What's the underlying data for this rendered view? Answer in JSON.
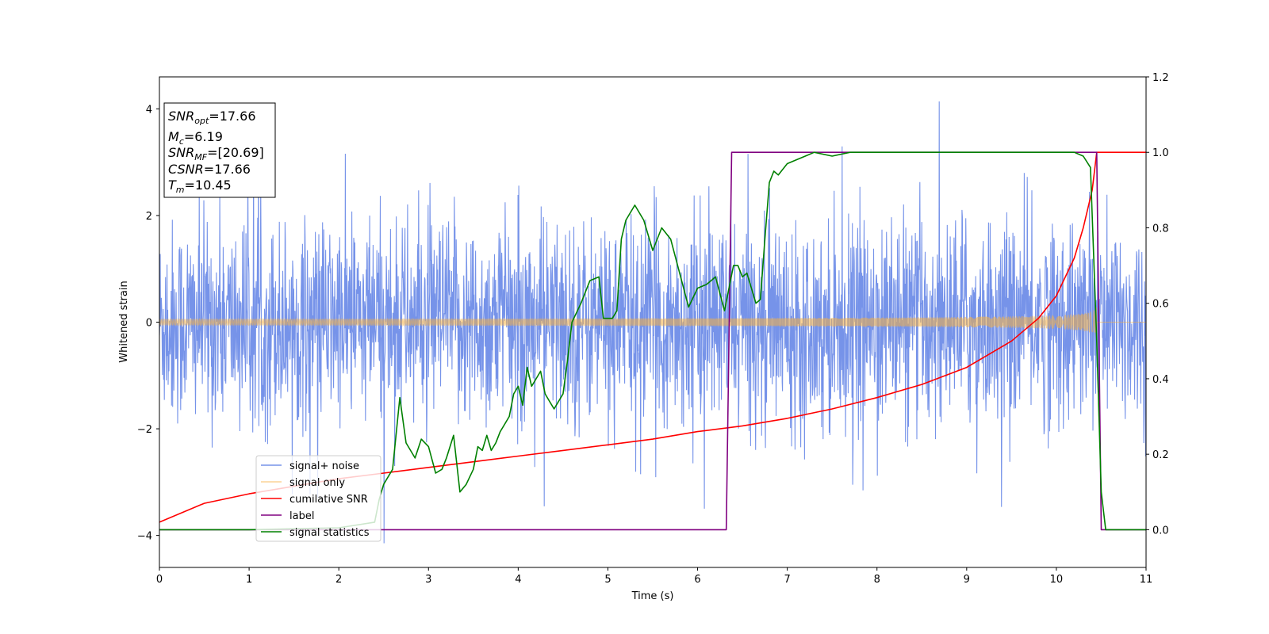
{
  "chart_data": {
    "type": "line",
    "xlabel": "Time (s)",
    "ylabel": "Whitened strain",
    "xlim": [
      0,
      11
    ],
    "ylim_left": [
      -4.6,
      4.6
    ],
    "ylim_right": [
      -0.1,
      1.2
    ],
    "x_ticks": [
      0,
      1,
      2,
      3,
      4,
      5,
      6,
      7,
      8,
      9,
      10,
      11
    ],
    "x_tick_labels": [
      "0",
      "1",
      "2",
      "3",
      "4",
      "5",
      "6",
      "7",
      "8",
      "9",
      "10",
      "11"
    ],
    "y_left_ticks": [
      -4,
      -2,
      0,
      2,
      4
    ],
    "y_left_tick_labels": [
      "−4",
      "−2",
      "0",
      "2",
      "4"
    ],
    "y_right_ticks": [
      0.0,
      0.2,
      0.4,
      0.6,
      0.8,
      1.0,
      1.2
    ],
    "y_right_tick_labels": [
      "0.0",
      "0.2",
      "0.4",
      "0.6",
      "0.8",
      "1.0",
      "1.2"
    ],
    "grid": false,
    "legend_placement": "lower-left",
    "info_box": {
      "placement": "top-left",
      "lines": [
        {
          "sym": "SNR",
          "sub": "opt",
          "rest": "=17.66"
        },
        {
          "sym": "M",
          "sub": "c",
          "rest": "=6.19"
        },
        {
          "sym": "SNR",
          "sub": "MF",
          "rest": "=[20.69]"
        },
        {
          "sym": "CSNR",
          "sub": "",
          "rest": "=17.66"
        },
        {
          "sym": "T",
          "sub": "m",
          "rest": "=10.45"
        }
      ]
    },
    "series": [
      {
        "name": "signal+ noise",
        "color": "#4169e1",
        "axis": "left",
        "style": "noise",
        "noise_sigma": 1.0,
        "x_range": [
          0,
          11
        ]
      },
      {
        "name": "signal only",
        "color": "#f5b041",
        "axis": "left",
        "style": "chirp",
        "merger_time": 10.45,
        "amplitude_start": 0.06,
        "amplitude_peak": 1.05
      },
      {
        "name": "cumilative SNR",
        "color": "#ff0000",
        "axis": "right",
        "x": [
          0,
          0.5,
          1,
          1.5,
          2,
          2.5,
          3,
          3.5,
          4,
          4.5,
          5,
          5.5,
          6,
          6.5,
          7,
          7.5,
          8,
          8.5,
          9,
          9.5,
          9.8,
          10,
          10.2,
          10.3,
          10.4,
          10.45,
          11
        ],
        "y": [
          0.02,
          0.07,
          0.095,
          0.115,
          0.135,
          0.15,
          0.165,
          0.18,
          0.195,
          0.21,
          0.225,
          0.24,
          0.26,
          0.275,
          0.295,
          0.32,
          0.35,
          0.385,
          0.43,
          0.5,
          0.56,
          0.62,
          0.72,
          0.8,
          0.9,
          1.0,
          1.0
        ]
      },
      {
        "name": "label",
        "color": "#800080",
        "axis": "right",
        "x": [
          0,
          6.32,
          6.38,
          10.45,
          10.5,
          11
        ],
        "y": [
          0,
          0,
          1,
          1,
          0,
          0
        ]
      },
      {
        "name": "signal statistics",
        "color": "#008000",
        "axis": "right",
        "x": [
          0,
          1.0,
          2.0,
          2.4,
          2.45,
          2.5,
          2.6,
          2.68,
          2.75,
          2.85,
          2.92,
          3.0,
          3.08,
          3.15,
          3.2,
          3.28,
          3.35,
          3.42,
          3.5,
          3.55,
          3.6,
          3.65,
          3.7,
          3.75,
          3.8,
          3.85,
          3.9,
          3.95,
          4.0,
          4.05,
          4.1,
          4.15,
          4.2,
          4.25,
          4.3,
          4.35,
          4.4,
          4.5,
          4.55,
          4.6,
          4.7,
          4.8,
          4.9,
          4.95,
          5.0,
          5.05,
          5.1,
          5.15,
          5.2,
          5.3,
          5.4,
          5.5,
          5.6,
          5.7,
          5.8,
          5.9,
          6.0,
          6.1,
          6.2,
          6.3,
          6.35,
          6.4,
          6.45,
          6.5,
          6.55,
          6.65,
          6.7,
          6.75,
          6.8,
          6.85,
          6.9,
          7.0,
          7.1,
          7.2,
          7.3,
          7.5,
          7.7,
          8.0,
          9.0,
          10.0,
          10.2,
          10.3,
          10.38,
          10.45,
          10.5,
          10.55,
          11
        ],
        "y": [
          0,
          0.0,
          0.005,
          0.02,
          0.08,
          0.12,
          0.16,
          0.35,
          0.23,
          0.19,
          0.24,
          0.22,
          0.15,
          0.16,
          0.19,
          0.25,
          0.1,
          0.12,
          0.16,
          0.22,
          0.21,
          0.25,
          0.21,
          0.23,
          0.26,
          0.28,
          0.3,
          0.36,
          0.38,
          0.33,
          0.43,
          0.38,
          0.4,
          0.42,
          0.36,
          0.34,
          0.32,
          0.36,
          0.45,
          0.55,
          0.6,
          0.66,
          0.67,
          0.56,
          0.56,
          0.56,
          0.58,
          0.77,
          0.82,
          0.86,
          0.82,
          0.74,
          0.8,
          0.77,
          0.68,
          0.59,
          0.64,
          0.65,
          0.67,
          0.58,
          0.64,
          0.7,
          0.7,
          0.67,
          0.68,
          0.6,
          0.61,
          0.77,
          0.92,
          0.95,
          0.94,
          0.97,
          0.98,
          0.99,
          1.0,
          0.99,
          1.0,
          1.0,
          1.0,
          1.0,
          1.0,
          0.99,
          0.96,
          0.5,
          0.1,
          0.0,
          0.0
        ]
      }
    ]
  }
}
